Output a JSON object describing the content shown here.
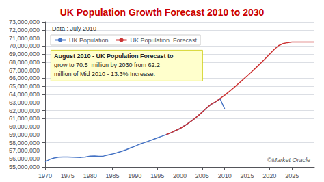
{
  "chart_data": {
    "type": "line",
    "title": "UK Population Growth Forecast 2010 to 2030",
    "annotations": [
      "Data : July 2010",
      "August 2010 - UK Population Forecast to",
      "grow to 70.5  million by 2030 from 62.2",
      "million of Mid 2010 - 13.3% Increase.",
      "©Market Oracle"
    ],
    "series": [
      {
        "name": "UK Population",
        "color": "#4472c4",
        "x": [
          1970,
          1971,
          1972,
          1973,
          1974,
          1975,
          1976,
          1977,
          1978,
          1979,
          1980,
          1981,
          1982,
          1983,
          1984,
          1985,
          1986,
          1987,
          1988,
          1989,
          1990,
          1991,
          1992,
          1993,
          1994,
          1995,
          1996,
          1997,
          1998,
          1999,
          2000,
          2001,
          2002,
          2003,
          2004,
          2005,
          2006,
          2007,
          2008,
          2009,
          2010
        ],
        "values": [
          55632000,
          55928000,
          56097000,
          56210000,
          56228000,
          56226000,
          56216000,
          56190000,
          56178000,
          56240000,
          56330000,
          56352000,
          56318000,
          56347000,
          56490000,
          56618000,
          56763000,
          56930000,
          57121000,
          57358000,
          57561000,
          57808000,
          58006000,
          58191000,
          58395000,
          58612000,
          58807000,
          59009000,
          59237000,
          59501000,
          59756000,
          60093000,
          60461000,
          60861000,
          61312000,
          61808000,
          62321000,
          62775000,
          63080000,
          63430000,
          62200000
        ]
      },
      {
        "name": "UK Population  Forecast",
        "color": "#cc3333",
        "x": [
          1997,
          1998,
          1999,
          2000,
          2001,
          2002,
          2003,
          2004,
          2005,
          2006,
          2007,
          2008,
          2009,
          2010,
          2011,
          2012,
          2013,
          2014,
          2015,
          2016,
          2017,
          2018,
          2019,
          2020,
          2021,
          2022,
          2023,
          2024,
          2025,
          2026,
          2027,
          2028,
          2029,
          2030
        ],
        "values": [
          59009000,
          59237000,
          59501000,
          59756000,
          60093000,
          60461000,
          60861000,
          61312000,
          61808000,
          62321000,
          62775000,
          63100000,
          63500000,
          63900000,
          64350000,
          64820000,
          65300000,
          65790000,
          66290000,
          66800000,
          67320000,
          67860000,
          68410000,
          68980000,
          69560000,
          70050000,
          70300000,
          70420000,
          70500000,
          70500000,
          70500000,
          70500000,
          70500000,
          70500000
        ]
      }
    ],
    "xlim": [
      1970,
      2030
    ],
    "xticks": [
      1970,
      1975,
      1980,
      1985,
      1990,
      1995,
      2000,
      2005,
      2010,
      2015,
      2020,
      2025
    ],
    "ylim": [
      55000000,
      73000000
    ],
    "yticks": [
      {
        "value": 55000000,
        "label": "55,000,000"
      },
      {
        "value": 56000000,
        "label": "56,000,000"
      },
      {
        "value": 57000000,
        "label": "57,000,000"
      },
      {
        "value": 58000000,
        "label": "58,000,000"
      },
      {
        "value": 59000000,
        "label": "59,000,000"
      },
      {
        "value": 60000000,
        "label": "60,000,000"
      },
      {
        "value": 61000000,
        "label": "61,000,000"
      },
      {
        "value": 62000000,
        "label": "62,000,000"
      },
      {
        "value": 63000000,
        "label": "63,000,000"
      },
      {
        "value": 64000000,
        "label": "64,000,000"
      },
      {
        "value": 65000000,
        "label": "65,000,000"
      },
      {
        "value": 66000000,
        "label": "66,000,000"
      },
      {
        "value": 67000000,
        "label": "67,000,000"
      },
      {
        "value": 68000000,
        "label": "68,000,000"
      },
      {
        "value": 69000000,
        "label": "69,000,000"
      },
      {
        "value": 70000000,
        "label": "70,000,000"
      },
      {
        "value": 71000000,
        "label": "71,000,000"
      },
      {
        "value": 72000000,
        "label": "72,000,000"
      },
      {
        "value": 73000000,
        "label": "73,000,000"
      }
    ],
    "grid": true,
    "legend": "upper left"
  }
}
